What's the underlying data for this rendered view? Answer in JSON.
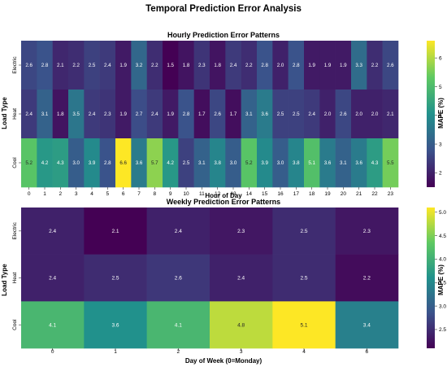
{
  "figure": {
    "title": "Temporal Prediction Error Analysis"
  },
  "colormap": {
    "name": "viridis",
    "stops": [
      "#440154",
      "#3b528b",
      "#21918c",
      "#5ec962",
      "#fde725"
    ]
  },
  "chart_data": [
    {
      "type": "heatmap",
      "title": "Hourly Prediction Error Patterns",
      "xlabel": "Hour of Day",
      "ylabel": "Load Type",
      "colorbar_label": "MAPE (%)",
      "vmin": 1.5,
      "vmax": 6.6,
      "colorbar_ticks": [
        2,
        3,
        4,
        5,
        6
      ],
      "x": [
        0,
        1,
        2,
        3,
        4,
        5,
        6,
        7,
        8,
        9,
        10,
        11,
        12,
        13,
        14,
        15,
        16,
        17,
        18,
        19,
        20,
        21,
        22,
        23
      ],
      "y": [
        "Electric",
        "Heat",
        "Cool"
      ],
      "values": [
        [
          2.6,
          2.8,
          2.1,
          2.2,
          2.5,
          2.4,
          1.9,
          3.2,
          2.2,
          1.5,
          1.8,
          2.3,
          1.8,
          2.4,
          2.2,
          2.8,
          2.0,
          2.8,
          1.9,
          1.9,
          1.9,
          3.3,
          2.2,
          2.6
        ],
        [
          2.4,
          3.1,
          1.8,
          3.5,
          2.4,
          2.3,
          1.9,
          2.7,
          2.4,
          1.9,
          2.8,
          1.7,
          2.6,
          1.7,
          3.1,
          3.6,
          2.5,
          2.5,
          2.4,
          2.0,
          2.6,
          2.0,
          2.0,
          2.1
        ],
        [
          5.2,
          4.2,
          4.3,
          3.0,
          3.9,
          2.8,
          6.6,
          3.6,
          5.7,
          4.2,
          2.5,
          3.1,
          3.8,
          3.0,
          5.2,
          3.9,
          3.0,
          3.8,
          5.1,
          3.6,
          3.1,
          3.6,
          4.3,
          5.5
        ]
      ]
    },
    {
      "type": "heatmap",
      "title": "Weekly Prediction Error Patterns",
      "xlabel": "Day of Week (0=Monday)",
      "ylabel": "Load Type",
      "colorbar_label": "MAPE (%)",
      "vmin": 2.1,
      "vmax": 5.1,
      "colorbar_ticks": [
        2.5,
        3.0,
        3.5,
        4.0,
        4.5,
        5.0
      ],
      "colorbar_tick_labels": [
        "2.5",
        "3.0",
        "3.5",
        "4.0",
        "4.5",
        "5.0"
      ],
      "x": [
        0,
        1,
        2,
        3,
        4,
        6
      ],
      "y": [
        "Electric",
        "Heat",
        "Cool"
      ],
      "values": [
        [
          2.4,
          2.1,
          2.4,
          2.3,
          2.5,
          2.3
        ],
        [
          2.4,
          2.5,
          2.6,
          2.4,
          2.5,
          2.2
        ],
        [
          4.1,
          3.6,
          4.1,
          4.8,
          5.1,
          3.4
        ]
      ]
    }
  ]
}
